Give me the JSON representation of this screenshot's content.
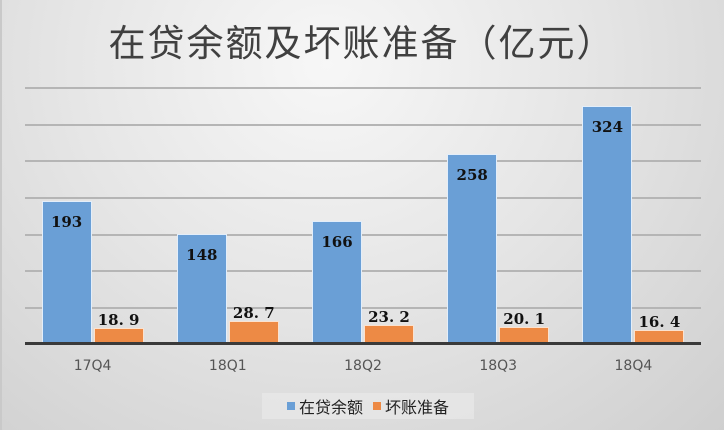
{
  "chart_data": {
    "type": "bar",
    "title": "在贷余额及坏账准备（亿元）",
    "xlabel": "",
    "ylabel": "",
    "categories": [
      "17Q4",
      "18Q1",
      "18Q2",
      "18Q3",
      "18Q4"
    ],
    "series": [
      {
        "name": "在贷余额",
        "color": "#6a9fd6",
        "values": [
          193,
          148,
          166,
          258,
          324
        ],
        "labels": [
          "193",
          "148",
          "166",
          "258",
          "324"
        ]
      },
      {
        "name": "坏账准备",
        "color": "#ed8a45",
        "values": [
          18.9,
          28.7,
          23.2,
          20.1,
          16.4
        ],
        "labels": [
          "18. 9",
          "28. 7",
          "23. 2",
          "20. 1",
          "16. 4"
        ]
      }
    ],
    "grid": true,
    "legend_position": "bottom",
    "axis_visible": false
  },
  "legend": {
    "items": [
      {
        "label": "在贷余额",
        "color": "#6a9fd6"
      },
      {
        "label": "坏账准备",
        "color": "#ed8a45"
      }
    ]
  }
}
